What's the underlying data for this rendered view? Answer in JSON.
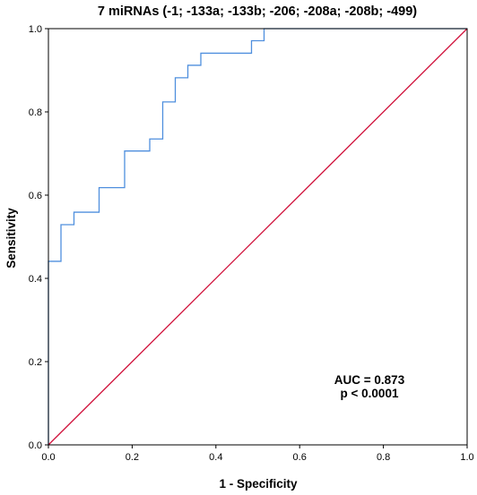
{
  "chart_data": {
    "type": "line",
    "title": "7 miRNAs (-1; -133a; -133b; -206; -208a; -208b; -499)",
    "xlabel": "1 - Specificity",
    "ylabel": "Sensitivity",
    "xlim": [
      0,
      1
    ],
    "ylim": [
      0,
      1
    ],
    "xticks": [
      "0.0",
      "0.2",
      "0.4",
      "0.6",
      "0.8",
      "1.0"
    ],
    "yticks": [
      "0.0",
      "0.2",
      "0.4",
      "0.6",
      "0.8",
      "1.0"
    ],
    "grid": false,
    "series": [
      {
        "color": "#4f8fde",
        "x": [
          0.0,
          0.0,
          0.03,
          0.03,
          0.061,
          0.061,
          0.121,
          0.121,
          0.182,
          0.182,
          0.242,
          0.242,
          0.273,
          0.273,
          0.303,
          0.303,
          0.333,
          0.333,
          0.364,
          0.364,
          0.485,
          0.485,
          0.515,
          0.515,
          1.0
        ],
        "y": [
          0.0,
          0.441,
          0.441,
          0.529,
          0.529,
          0.559,
          0.559,
          0.618,
          0.618,
          0.706,
          0.706,
          0.735,
          0.735,
          0.824,
          0.824,
          0.882,
          0.882,
          0.912,
          0.912,
          0.941,
          0.941,
          0.971,
          0.971,
          1.0,
          1.0
        ]
      },
      {
        "color": "#d0103a",
        "x": [
          0,
          1
        ],
        "y": [
          0,
          1
        ]
      }
    ],
    "annotations": [
      "AUC = 0.873",
      "p < 0.0001"
    ]
  }
}
